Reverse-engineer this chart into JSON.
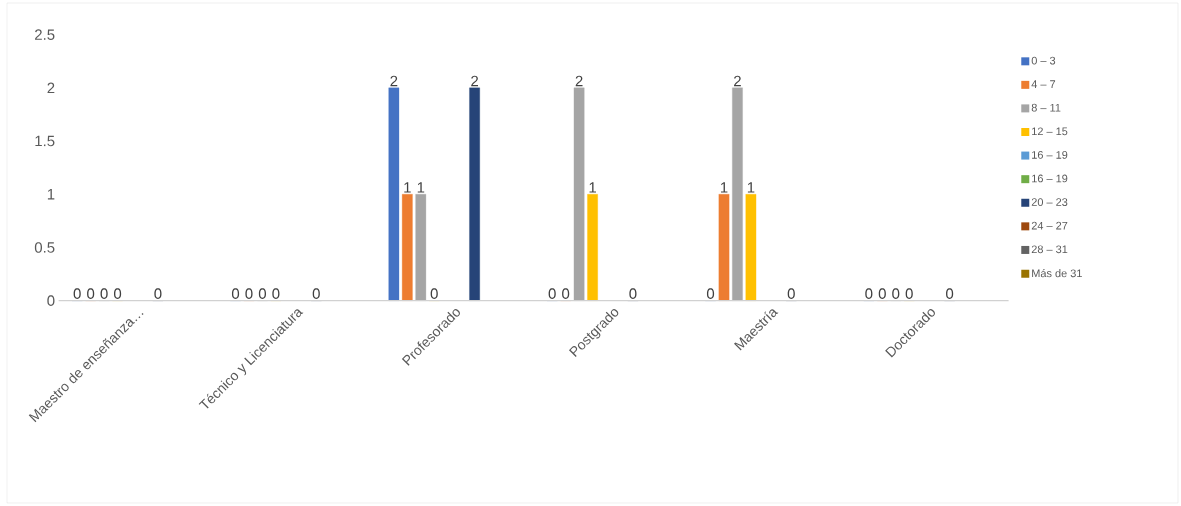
{
  "chart_data": {
    "type": "bar",
    "categories": [
      "Maestro de enseñanza…",
      "Técnico y Licenciatura",
      "Profesorado",
      "Postgrado",
      "Maestría",
      "Doctorado"
    ],
    "series": [
      {
        "name": "0 – 3",
        "color": "#4472c4",
        "values": [
          0,
          0,
          2,
          0,
          0,
          0
        ]
      },
      {
        "name": "4 – 7",
        "color": "#ed7d31",
        "values": [
          0,
          0,
          1,
          0,
          1,
          0
        ]
      },
      {
        "name": "8 – 11",
        "color": "#a5a5a5",
        "values": [
          0,
          0,
          1,
          2,
          2,
          0
        ]
      },
      {
        "name": "12 – 15",
        "color": "#ffc000",
        "values": [
          0,
          0,
          0,
          1,
          1,
          0
        ]
      },
      {
        "name": "16 – 19",
        "color": "#5b9bd5",
        "values": [
          null,
          null,
          null,
          null,
          null,
          null
        ]
      },
      {
        "name": "16 – 19",
        "color": "#70ad47",
        "values": [
          null,
          null,
          null,
          null,
          null,
          null
        ]
      },
      {
        "name": "20 – 23",
        "color": "#264478",
        "values": [
          0,
          0,
          2,
          0,
          0,
          0
        ]
      },
      {
        "name": "24 – 27",
        "color": "#9e480e",
        "values": [
          null,
          null,
          null,
          null,
          null,
          null
        ]
      },
      {
        "name": "28 – 31",
        "color": "#636363",
        "values": [
          null,
          null,
          null,
          null,
          null,
          null
        ]
      },
      {
        "name": "Más de 31",
        "color": "#997300",
        "values": [
          null,
          null,
          null,
          null,
          null,
          null
        ]
      }
    ],
    "ylim": [
      0,
      2.5
    ],
    "yticks": [
      0,
      0.5,
      1,
      1.5,
      2,
      2.5
    ],
    "data_labels": true,
    "legend": "right"
  }
}
